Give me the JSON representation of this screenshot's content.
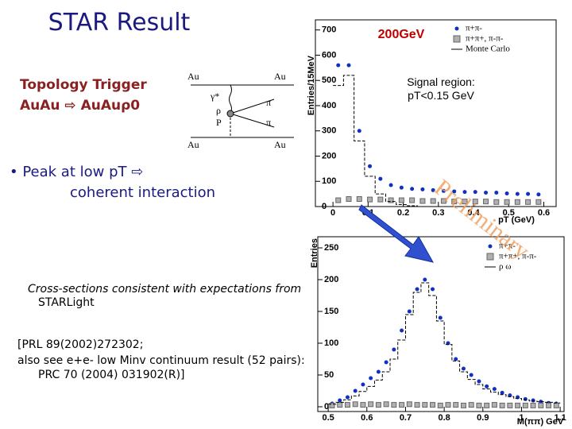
{
  "slide": {
    "title": "STAR Result",
    "trigger": "Topology Trigger",
    "reaction": "AuAu ⇨ AuAuρ0",
    "bullet_1": "• Peak at low pT ⇨",
    "bullet_2": "coherent interaction",
    "note_1": "Cross-sections consistent with expectations from",
    "note_2": "STARLight",
    "ref_1": "[PRL 89(2002)272302;",
    "ref_2": "also see e+e- low Minv continuum result (52 pairs):",
    "ref_3": "PRC 70 (2004) 031902(R)]",
    "watermark": "Preliminary",
    "diagram": {
      "au_top_left": "Au",
      "au_top_right": "Au",
      "gamma": "γ*",
      "pomeron": "P",
      "rho": "ρ",
      "pi_1": "π",
      "pi_2": "π",
      "au_bottom_left": "Au",
      "au_bottom_right": "Au"
    }
  },
  "chart_data": [
    {
      "type": "scatter",
      "title": "200GeV",
      "annotation_1": "Signal region:",
      "annotation_2": "pT<0.15 GeV",
      "x_label": "pT (GeV)",
      "y_label": "Entries/15MeV",
      "x": [
        0.015,
        0.045,
        0.075,
        0.105,
        0.135,
        0.165,
        0.195,
        0.225,
        0.255,
        0.285,
        0.315,
        0.345,
        0.375,
        0.405,
        0.435,
        0.465,
        0.495,
        0.525,
        0.555,
        0.585
      ],
      "series": [
        {
          "name": "π+π-",
          "color": "#1030c0",
          "marker": "circle",
          "values": [
            560,
            560,
            300,
            160,
            110,
            85,
            75,
            70,
            68,
            65,
            62,
            60,
            58,
            58,
            55,
            55,
            52,
            50,
            50,
            48
          ]
        },
        {
          "name": "π+π+, π-π-",
          "color": "#b0b0b0",
          "marker": "square",
          "values": [
            25,
            30,
            30,
            28,
            28,
            25,
            25,
            25,
            22,
            22,
            22,
            20,
            20,
            20,
            20,
            18,
            18,
            18,
            18,
            18
          ]
        },
        {
          "name": "Monte Carlo",
          "color": "#000000",
          "marker": "line",
          "values": [
            480,
            520,
            260,
            120,
            50,
            20,
            8,
            3,
            0,
            0,
            0,
            0,
            0,
            0,
            0,
            0,
            0,
            0,
            0,
            0
          ]
        }
      ],
      "xlim": [
        -0.05,
        0.635
      ],
      "ylim": [
        0,
        740
      ],
      "xticks": [
        0,
        0.1,
        0.2,
        0.3,
        0.4,
        0.5,
        0.6
      ],
      "yticks": [
        0,
        100,
        200,
        300,
        400,
        500,
        600,
        700
      ],
      "legend": "upper right"
    },
    {
      "type": "scatter",
      "x_label": "M(ππ) GeV",
      "y_label": "Entries",
      "x": [
        0.51,
        0.53,
        0.55,
        0.57,
        0.59,
        0.61,
        0.63,
        0.65,
        0.67,
        0.69,
        0.71,
        0.73,
        0.75,
        0.77,
        0.79,
        0.81,
        0.83,
        0.85,
        0.87,
        0.89,
        0.91,
        0.93,
        0.95,
        0.97,
        0.99,
        1.01,
        1.03,
        1.05,
        1.07,
        1.09
      ],
      "series": [
        {
          "name": "π+π-",
          "color": "#1030c0",
          "marker": "circle",
          "values": [
            5,
            10,
            15,
            25,
            35,
            45,
            55,
            70,
            90,
            120,
            150,
            185,
            200,
            185,
            140,
            100,
            75,
            60,
            50,
            40,
            32,
            28,
            22,
            18,
            15,
            12,
            10,
            8,
            6,
            5
          ]
        },
        {
          "name": "π+π+, π-π-",
          "color": "#b0b0b0",
          "marker": "square",
          "values": [
            2,
            3,
            3,
            4,
            3,
            4,
            3,
            4,
            3,
            3,
            4,
            3,
            3,
            3,
            2,
            3,
            3,
            2,
            3,
            2,
            2,
            3,
            2,
            2,
            2,
            2,
            2,
            2,
            2,
            2
          ]
        },
        {
          "name": "ρ ω",
          "color": "#000000",
          "marker": "line",
          "values": [
            4,
            7,
            11,
            17,
            24,
            32,
            42,
            55,
            75,
            105,
            145,
            180,
            195,
            175,
            135,
            98,
            72,
            55,
            43,
            35,
            28,
            23,
            19,
            16,
            13,
            11,
            9,
            8,
            7,
            6
          ]
        }
      ],
      "xlim": [
        0.473,
        1.11
      ],
      "ylim": [
        -7.5,
        267.5
      ],
      "xticks": [
        0.5,
        0.6,
        0.7,
        0.8,
        0.9,
        1,
        1.1
      ],
      "yticks": [
        0,
        50,
        100,
        150,
        200,
        250
      ],
      "legend": "upper right"
    }
  ]
}
